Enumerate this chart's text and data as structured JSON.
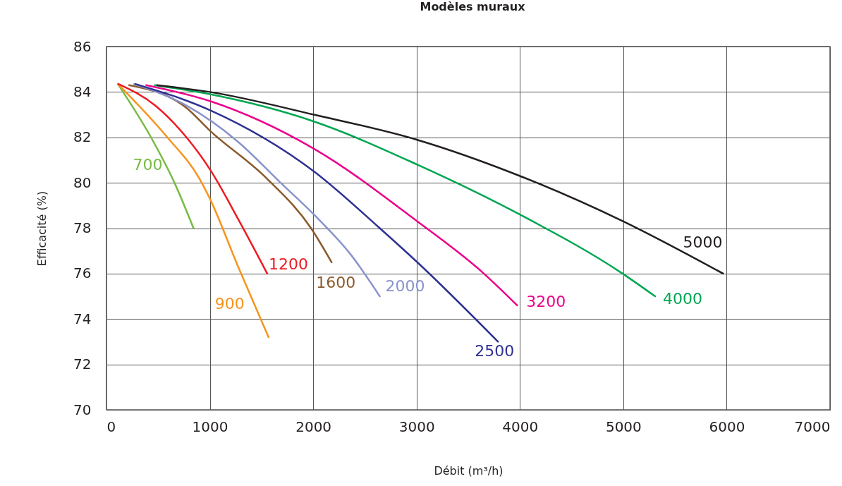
{
  "chart_data": {
    "type": "line",
    "title": "Modèles muraux",
    "xlabel": "Débit (m³/h)",
    "ylabel": "Efficacité (%)",
    "xlim": [
      0,
      7000
    ],
    "xticks": [
      0,
      1000,
      2000,
      3000,
      4000,
      5000,
      6000,
      7000
    ],
    "ylim": [
      70,
      86
    ],
    "yticks": [
      70,
      72,
      74,
      76,
      78,
      80,
      82,
      84,
      86
    ],
    "grid": true,
    "legend": false,
    "series": [
      {
        "name": "700",
        "color": "#77bb44",
        "x": [
          110,
          431,
          658,
          842
        ],
        "values": [
          84.35,
          82.0,
          80.0,
          78.0
        ]
      },
      {
        "name": "900",
        "color": "#f7941d",
        "x": [
          110,
          589,
          897,
          1000,
          1274,
          1568
        ],
        "values": [
          84.35,
          82.0,
          80.2,
          79.3,
          76.3,
          73.2
        ]
      },
      {
        "name": "1200",
        "color": "#ed1c24",
        "x": [
          116,
          473,
          774,
          1000,
          1274,
          1555
        ],
        "values": [
          84.35,
          83.4,
          82.0,
          80.6,
          78.4,
          76.0
        ]
      },
      {
        "name": "1600",
        "color": "#8b5a2b",
        "x": [
          219,
          774,
          1000,
          1548,
          1979,
          2178
        ],
        "values": [
          84.3,
          83.3,
          82.3,
          80.2,
          78.0,
          76.5
        ]
      },
      {
        "name": "2000",
        "color": "#8a93cc",
        "x": [
          267,
          774,
          1274,
          1685,
          2007,
          2370,
          2644
        ],
        "values": [
          84.35,
          83.4,
          81.8,
          80.0,
          78.6,
          76.8,
          75.0
        ]
      },
      {
        "name": "2500",
        "color": "#2e3192",
        "x": [
          280,
          1000,
          2007,
          2644,
          3007,
          3788
        ],
        "values": [
          84.35,
          83.2,
          80.5,
          78.0,
          76.5,
          73.0
        ]
      },
      {
        "name": "3200",
        "color": "#ec008c",
        "x": [
          384,
          1000,
          2007,
          3007,
          3651,
          3973
        ],
        "values": [
          84.3,
          83.6,
          81.5,
          78.3,
          76.0,
          74.6
        ]
      },
      {
        "name": "4000",
        "color": "#00a651",
        "x": [
          466,
          1000,
          2007,
          3007,
          4000,
          4993,
          5308
        ],
        "values": [
          84.3,
          83.9,
          82.7,
          80.8,
          78.6,
          76.0,
          75.0
        ]
      },
      {
        "name": "5000",
        "color": "#231f20",
        "x": [
          490,
          1000,
          2007,
          3000,
          4000,
          5000,
          5966
        ],
        "values": [
          84.3,
          84.0,
          83.0,
          81.9,
          80.3,
          78.3,
          76.0
        ]
      }
    ]
  }
}
